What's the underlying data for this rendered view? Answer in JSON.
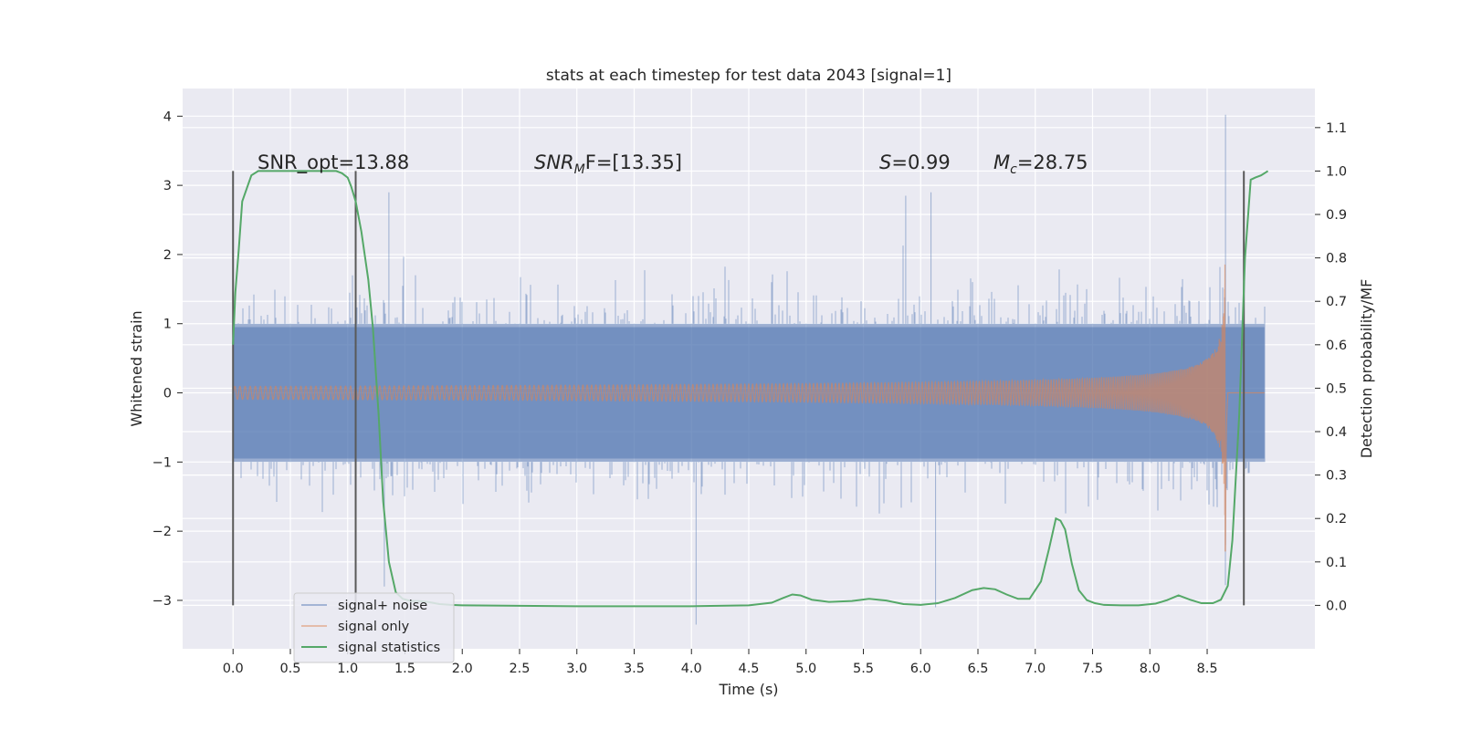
{
  "chart_data": {
    "type": "line",
    "title": "stats at each timestep for test data 2043 [signal=1]",
    "xlabel": "Time (s)",
    "ylabel": "Whitened strain",
    "y2label": "Detection probability/MF",
    "xlim": [
      -0.44,
      9.44
    ],
    "ylim": [
      -3.7,
      4.4
    ],
    "y2lim": [
      -0.1,
      1.19
    ],
    "xticks": [
      0.0,
      0.5,
      1.0,
      1.5,
      2.0,
      2.5,
      3.0,
      3.5,
      4.0,
      4.5,
      5.0,
      5.5,
      6.0,
      6.5,
      7.0,
      7.5,
      8.0,
      8.5
    ],
    "xtick_labels": [
      "0.0",
      "0.5",
      "1.0",
      "1.5",
      "2.0",
      "2.5",
      "3.0",
      "3.5",
      "4.0",
      "4.5",
      "5.0",
      "5.5",
      "6.0",
      "6.5",
      "7.0",
      "7.5",
      "8.0",
      "8.5"
    ],
    "yticks": [
      -3,
      -2,
      -1,
      0,
      1,
      2,
      3,
      4
    ],
    "ytick_labels": [
      "−3",
      "−2",
      "−1",
      "0",
      "1",
      "2",
      "3",
      "4"
    ],
    "y2ticks": [
      0.0,
      0.1,
      0.2,
      0.3,
      0.4,
      0.5,
      0.6,
      0.7,
      0.8,
      0.9,
      1.0,
      1.1
    ],
    "y2tick_labels": [
      "0.0",
      "0.1",
      "0.2",
      "0.3",
      "0.4",
      "0.5",
      "0.6",
      "0.7",
      "0.8",
      "0.9",
      "1.0",
      "1.1"
    ],
    "legend": {
      "position": "lower-left",
      "entries": [
        "signal+ noise",
        "signal only",
        "signal statistics"
      ]
    },
    "colors": {
      "noise": "#4c72b0",
      "signal": "#dd8452",
      "stats": "#55a868",
      "vline": "#595959",
      "background": "#eaeaf2",
      "grid": "#ffffff"
    },
    "annotations": {
      "snr_opt": "SNR_opt=13.88",
      "snr_mf_base": "SNR",
      "snr_mf_sub": "M",
      "snr_mf_rest": "F=[13.35]",
      "s_var": "S",
      "s_value": "=0.99",
      "mc_var": "M",
      "mc_sub": "c",
      "mc_value": "=28.75"
    },
    "vertical_markers_x": [
      0.0,
      1.07,
      8.82
    ],
    "noise_series": {
      "t_start": 0.0,
      "t_end": 9.0,
      "band": [
        -0.95,
        0.95
      ],
      "notable_peaks": [
        {
          "t": 0.0,
          "v": 1.6
        },
        {
          "t": 0.0,
          "v": -2.2
        },
        {
          "t": 1.36,
          "v": 2.9
        },
        {
          "t": 1.32,
          "v": -2.8
        },
        {
          "t": 4.04,
          "v": -3.35
        },
        {
          "t": 5.87,
          "v": 2.85
        },
        {
          "t": 6.09,
          "v": 2.9
        },
        {
          "t": 6.13,
          "v": -3.1
        },
        {
          "t": 8.66,
          "v": 4.02
        },
        {
          "t": 8.66,
          "v": -2.2
        }
      ]
    },
    "signal_series": {
      "t_start": 0.0,
      "t_end": 9.0,
      "merger_t": 8.66,
      "peak_amplitude": 2.35
    },
    "stats_series": {
      "x": [
        0.0,
        0.02,
        0.05,
        0.08,
        0.12,
        0.16,
        0.22,
        0.35,
        0.6,
        0.8,
        0.9,
        0.95,
        1.0,
        1.03,
        1.07,
        1.12,
        1.18,
        1.22,
        1.27,
        1.31,
        1.36,
        1.42,
        1.48,
        1.55,
        1.62,
        1.7,
        1.8,
        1.9,
        2.0,
        2.5,
        3.0,
        3.5,
        4.0,
        4.5,
        4.7,
        4.8,
        4.88,
        4.95,
        5.05,
        5.2,
        5.4,
        5.55,
        5.7,
        5.85,
        6.0,
        6.15,
        6.3,
        6.45,
        6.55,
        6.65,
        6.75,
        6.85,
        6.95,
        7.05,
        7.12,
        7.18,
        7.22,
        7.26,
        7.32,
        7.38,
        7.45,
        7.52,
        7.6,
        7.75,
        7.9,
        8.05,
        8.15,
        8.25,
        8.35,
        8.45,
        8.55,
        8.62,
        8.68,
        8.72,
        8.78,
        8.83,
        8.88,
        8.92,
        8.97,
        9.03
      ],
      "y": [
        0.6,
        0.72,
        0.82,
        0.93,
        0.96,
        0.99,
        1.0,
        1.0,
        1.0,
        1.0,
        1.0,
        0.995,
        0.985,
        0.965,
        0.93,
        0.86,
        0.75,
        0.64,
        0.44,
        0.24,
        0.1,
        0.03,
        0.015,
        0.01,
        0.01,
        0.008,
        0.003,
        0.001,
        0.0,
        -0.001,
        -0.002,
        -0.002,
        -0.002,
        0.0,
        0.006,
        0.017,
        0.025,
        0.023,
        0.013,
        0.008,
        0.01,
        0.015,
        0.011,
        0.003,
        0.001,
        0.005,
        0.017,
        0.035,
        0.04,
        0.037,
        0.025,
        0.015,
        0.015,
        0.055,
        0.13,
        0.2,
        0.195,
        0.175,
        0.095,
        0.035,
        0.012,
        0.005,
        0.001,
        0.0,
        0.0,
        0.004,
        0.012,
        0.023,
        0.013,
        0.005,
        0.005,
        0.013,
        0.045,
        0.15,
        0.44,
        0.8,
        0.98,
        0.985,
        0.99,
        1.0
      ]
    }
  }
}
